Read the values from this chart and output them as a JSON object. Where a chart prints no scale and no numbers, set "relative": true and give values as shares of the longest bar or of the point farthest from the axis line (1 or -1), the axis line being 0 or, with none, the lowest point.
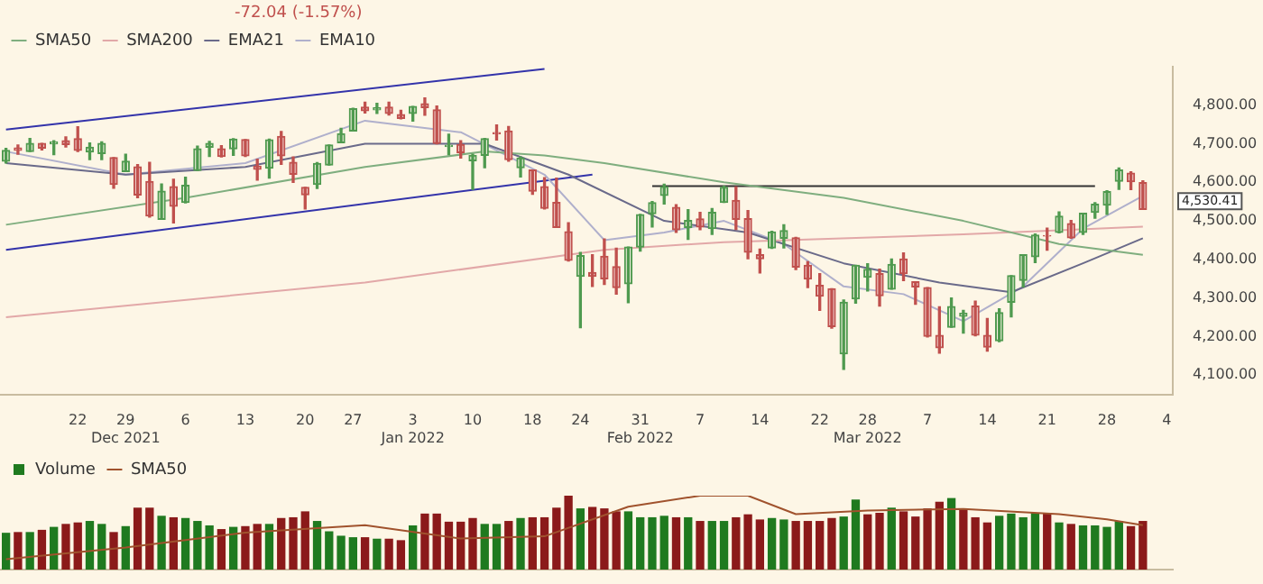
{
  "chart_data": [
    {
      "type": "candlestick",
      "legend": "top left",
      "annotations": [
        "-72.04 (-1.57%)",
        "4,530.41"
      ],
      "categories": [
        null,
        null,
        null,
        null,
        null,
        null,
        "22",
        null,
        null,
        null,
        "29 Dec 2021",
        null,
        null,
        null,
        null,
        "6",
        null,
        null,
        null,
        null,
        "13",
        null,
        null,
        null,
        null,
        "20",
        null,
        null,
        null,
        "27",
        null,
        null,
        null,
        null,
        "3 Jan 2022",
        null,
        null,
        null,
        null,
        "10",
        null,
        null,
        null,
        null,
        "18",
        null,
        null,
        null,
        "24",
        null,
        null,
        null,
        null,
        "31 Feb 2022",
        null,
        null,
        null,
        null,
        "7",
        null,
        null,
        null,
        null,
        "14",
        null,
        null,
        null,
        null,
        "22",
        null,
        null,
        null,
        "28 Mar 2022",
        null,
        null,
        null,
        null,
        "7",
        null,
        null,
        null,
        null,
        "14",
        null,
        null,
        null,
        null,
        "21",
        null,
        null,
        null,
        null,
        "28",
        null,
        null,
        null,
        null,
        "4"
      ],
      "ohlc": [
        [
          4655,
          4688,
          4650,
          4683
        ],
        [
          4689,
          4697,
          4673,
          4683
        ],
        [
          4680,
          4714,
          4680,
          4701
        ],
        [
          4701,
          4701,
          4684,
          4689
        ],
        [
          4700,
          4708,
          4672,
          4705
        ],
        [
          4708,
          4718,
          4692,
          4698
        ],
        [
          4713,
          4744,
          4680,
          4683
        ],
        [
          4679,
          4702,
          4659,
          4691
        ],
        [
          4675,
          4705,
          4659,
          4701
        ],
        [
          4664,
          4664,
          4585,
          4595
        ],
        [
          4628,
          4673,
          4628,
          4655
        ],
        [
          4640,
          4646,
          4560,
          4567
        ],
        [
          4602,
          4652,
          4510,
          4513
        ],
        [
          4504,
          4596,
          4504,
          4577
        ],
        [
          4589,
          4608,
          4495,
          4538
        ],
        [
          4548,
          4613,
          4547,
          4592
        ],
        [
          4631,
          4694,
          4631,
          4687
        ],
        [
          4691,
          4706,
          4667,
          4701
        ],
        [
          4687,
          4695,
          4666,
          4667
        ],
        [
          4687,
          4713,
          4670,
          4712
        ],
        [
          4711,
          4711,
          4667,
          4669
        ],
        [
          4642,
          4660,
          4606,
          4634
        ],
        [
          4637,
          4712,
          4611,
          4710
        ],
        [
          4719,
          4732,
          4647,
          4669
        ],
        [
          4652,
          4666,
          4600,
          4621
        ],
        [
          4587,
          4587,
          4531,
          4568
        ],
        [
          4595,
          4651,
          4584,
          4649
        ],
        [
          4645,
          4697,
          4645,
          4697
        ],
        [
          4703,
          4740,
          4703,
          4726
        ],
        [
          4733,
          4792,
          4733,
          4791
        ],
        [
          4795,
          4808,
          4780,
          4786
        ],
        [
          4788,
          4805,
          4779,
          4793
        ],
        [
          4795,
          4808,
          4775,
          4779
        ],
        [
          4776,
          4787,
          4765,
          4766
        ],
        [
          4779,
          4797,
          4759,
          4797
        ],
        [
          4804,
          4819,
          4774,
          4794
        ],
        [
          4788,
          4798,
          4700,
          4701
        ],
        [
          4693,
          4725,
          4672,
          4696
        ],
        [
          4698,
          4708,
          4663,
          4677
        ],
        [
          4656,
          4673,
          4582,
          4670
        ],
        [
          4670,
          4714,
          4638,
          4713
        ],
        [
          4729,
          4749,
          4710,
          4726
        ],
        [
          4733,
          4745,
          4655,
          4659
        ],
        [
          4638,
          4666,
          4614,
          4663
        ],
        [
          4632,
          4632,
          4569,
          4577
        ],
        [
          4589,
          4612,
          4531,
          4533
        ],
        [
          4548,
          4611,
          4483,
          4483
        ],
        [
          4472,
          4495,
          4396,
          4398
        ],
        [
          4356,
          4418,
          4223,
          4410
        ],
        [
          4366,
          4412,
          4330,
          4356
        ],
        [
          4408,
          4453,
          4335,
          4350
        ],
        [
          4381,
          4429,
          4310,
          4327
        ],
        [
          4337,
          4432,
          4288,
          4432
        ],
        [
          4432,
          4517,
          4422,
          4516
        ],
        [
          4519,
          4550,
          4484,
          4547
        ],
        [
          4566,
          4595,
          4544,
          4589
        ],
        [
          4535,
          4542,
          4470,
          4477
        ],
        [
          4483,
          4529,
          4452,
          4501
        ],
        [
          4505,
          4522,
          4477,
          4484
        ],
        [
          4480,
          4532,
          4465,
          4522
        ],
        [
          4548,
          4590,
          4548,
          4587
        ],
        [
          4553,
          4588,
          4478,
          4504
        ],
        [
          4506,
          4527,
          4402,
          4419
        ],
        [
          4412,
          4427,
          4365,
          4402
        ],
        [
          4430,
          4473,
          4429,
          4471
        ],
        [
          4455,
          4490,
          4430,
          4475
        ],
        [
          4456,
          4457,
          4374,
          4380
        ],
        [
          4385,
          4394,
          4327,
          4349
        ],
        [
          4333,
          4363,
          4268,
          4305
        ],
        [
          4324,
          4324,
          4222,
          4226
        ],
        [
          4155,
          4295,
          4115,
          4289
        ],
        [
          4298,
          4385,
          4287,
          4385
        ],
        [
          4354,
          4389,
          4318,
          4374
        ],
        [
          4363,
          4375,
          4279,
          4306
        ],
        [
          4323,
          4401,
          4323,
          4387
        ],
        [
          4401,
          4417,
          4345,
          4363
        ],
        [
          4342,
          4342,
          4284,
          4329
        ],
        [
          4327,
          4327,
          4199,
          4201
        ],
        [
          4203,
          4277,
          4157,
          4171
        ],
        [
          4224,
          4300,
          4224,
          4278
        ],
        [
          4253,
          4268,
          4209,
          4260
        ],
        [
          4279,
          4292,
          4202,
          4204
        ],
        [
          4203,
          4247,
          4162,
          4173
        ],
        [
          4189,
          4272,
          4187,
          4262
        ],
        [
          4289,
          4358,
          4251,
          4358
        ],
        [
          4346,
          4412,
          4329,
          4412
        ],
        [
          4407,
          4466,
          4392,
          4463
        ],
        [
          4462,
          4481,
          4424,
          4461
        ],
        [
          4470,
          4523,
          4469,
          4512
        ],
        [
          4493,
          4501,
          4455,
          4456
        ],
        [
          4470,
          4520,
          4465,
          4520
        ],
        [
          4522,
          4547,
          4507,
          4543
        ],
        [
          4541,
          4578,
          4517,
          4576
        ],
        [
          4603,
          4637,
          4582,
          4632
        ],
        [
          4624,
          4627,
          4581,
          4602
        ],
        [
          4599,
          4604,
          4530,
          4530
        ],
        null,
        null
      ],
      "series": [
        {
          "type": "line",
          "name": "SMA50",
          "color": "#7fae7f",
          "values": [
            4490,
            null,
            null,
            null,
            null,
            null,
            null,
            null,
            null,
            null,
            null,
            null,
            null,
            null,
            null,
            4560,
            null,
            null,
            null,
            null,
            null,
            null,
            null,
            null,
            null,
            null,
            null,
            null,
            null,
            null,
            4640,
            null,
            null,
            null,
            null,
            null,
            null,
            null,
            null,
            null,
            4680,
            null,
            null,
            null,
            null,
            4670,
            null,
            null,
            null,
            null,
            4650,
            null,
            null,
            null,
            null,
            null,
            null,
            null,
            null,
            null,
            4600,
            null,
            null,
            null,
            null,
            null,
            null,
            null,
            null,
            null,
            4560,
            null,
            null,
            null,
            null,
            null,
            null,
            null,
            null,
            null,
            4500,
            null,
            null,
            null,
            null,
            null,
            null,
            null,
            4440,
            null,
            null,
            null,
            null,
            null,
            null,
            4412,
            null,
            null
          ]
        },
        {
          "type": "line",
          "name": "SMA200",
          "color": "#e2a8a8",
          "values": [
            4250,
            null,
            null,
            null,
            null,
            null,
            null,
            null,
            null,
            null,
            null,
            null,
            null,
            null,
            null,
            null,
            null,
            null,
            null,
            null,
            null,
            null,
            null,
            null,
            null,
            null,
            null,
            null,
            null,
            null,
            4340,
            null,
            null,
            null,
            null,
            null,
            null,
            null,
            null,
            null,
            null,
            null,
            null,
            null,
            null,
            null,
            null,
            null,
            null,
            null,
            4425,
            null,
            null,
            null,
            null,
            null,
            null,
            null,
            null,
            null,
            4445,
            null,
            null,
            null,
            null,
            null,
            null,
            null,
            null,
            null,
            null,
            null,
            null,
            null,
            null,
            null,
            null,
            null,
            null,
            null,
            4465,
            null,
            null,
            null,
            null,
            null,
            null,
            null,
            null,
            null,
            null,
            null,
            null,
            null,
            null,
            4485,
            null,
            null
          ]
        },
        {
          "type": "line",
          "name": "EMA21",
          "color": "#6a6a8a",
          "values": [
            4650,
            null,
            null,
            null,
            null,
            null,
            null,
            null,
            null,
            null,
            4620,
            null,
            null,
            null,
            null,
            null,
            null,
            null,
            null,
            null,
            4640,
            null,
            null,
            null,
            null,
            null,
            null,
            null,
            null,
            null,
            4700,
            null,
            null,
            null,
            null,
            null,
            null,
            null,
            null,
            null,
            4700,
            null,
            null,
            null,
            null,
            null,
            null,
            4620,
            null,
            null,
            null,
            null,
            null,
            null,
            null,
            4500,
            null,
            null,
            null,
            null,
            null,
            null,
            4470,
            null,
            null,
            null,
            null,
            null,
            null,
            null,
            4390,
            null,
            null,
            null,
            null,
            null,
            null,
            null,
            4340,
            null,
            null,
            null,
            null,
            null,
            4315,
            null,
            null,
            null,
            null,
            null,
            4390,
            null,
            null,
            null,
            null,
            4455,
            null,
            null
          ]
        },
        {
          "type": "line",
          "name": "EMA10",
          "color": "#b0b0cc",
          "values": [
            4680,
            null,
            null,
            null,
            null,
            null,
            null,
            null,
            null,
            null,
            4620,
            null,
            null,
            null,
            null,
            null,
            null,
            null,
            null,
            null,
            4650,
            null,
            null,
            null,
            null,
            null,
            null,
            null,
            null,
            null,
            4760,
            null,
            null,
            null,
            null,
            null,
            null,
            null,
            4730,
            null,
            null,
            null,
            null,
            null,
            null,
            4620,
            null,
            null,
            null,
            null,
            4450,
            null,
            null,
            null,
            null,
            4470,
            null,
            null,
            null,
            null,
            4500,
            null,
            null,
            null,
            null,
            4440,
            null,
            null,
            null,
            null,
            4330,
            null,
            null,
            null,
            null,
            4310,
            null,
            null,
            null,
            null,
            4240,
            null,
            null,
            null,
            null,
            4330,
            null,
            null,
            null,
            null,
            4480,
            null,
            null,
            null,
            null,
            4565,
            null,
            null
          ]
        },
        {
          "type": "line",
          "color": "#3333aa",
          "values": [
            4737,
            null,
            null,
            null,
            null,
            null,
            null,
            null,
            null,
            null,
            null,
            null,
            null,
            null,
            null,
            null,
            null,
            null,
            null,
            null,
            null,
            null,
            null,
            null,
            null,
            null,
            null,
            null,
            null,
            null,
            null,
            null,
            null,
            null,
            null,
            null,
            null,
            null,
            null,
            null,
            null,
            null,
            null,
            null,
            null,
            4894,
            null,
            null,
            null,
            null,
            null,
            null,
            null,
            null,
            null,
            null,
            null,
            null,
            null,
            null,
            null,
            null,
            null,
            null,
            null,
            null,
            null,
            null,
            null,
            null,
            null,
            null,
            null,
            null,
            null,
            null,
            null,
            null,
            null,
            null,
            null,
            null,
            null,
            null,
            null,
            null,
            null,
            null,
            null,
            null,
            null,
            null,
            null,
            null,
            null,
            null,
            null,
            null
          ]
        },
        {
          "type": "line",
          "color": "#3333aa",
          "values": [
            4425,
            null,
            null,
            null,
            null,
            null,
            null,
            null,
            null,
            null,
            null,
            null,
            null,
            null,
            null,
            null,
            null,
            null,
            null,
            null,
            null,
            null,
            null,
            null,
            null,
            null,
            null,
            null,
            null,
            null,
            null,
            null,
            null,
            null,
            null,
            null,
            null,
            null,
            null,
            null,
            null,
            null,
            null,
            null,
            null,
            null,
            null,
            null,
            null,
            4620,
            null,
            null,
            null,
            null,
            null,
            null,
            null,
            null,
            null,
            null,
            null,
            null,
            null,
            null,
            null,
            null,
            null,
            null,
            null,
            null,
            null,
            null,
            null,
            null,
            null,
            null,
            null,
            null,
            null,
            null,
            null,
            null,
            null,
            null,
            null,
            null,
            null,
            null,
            null,
            null,
            null,
            null,
            null,
            null,
            null,
            null,
            null,
            null
          ]
        },
        {
          "type": "line",
          "color": "#333333",
          "values": [
            null,
            null,
            null,
            null,
            null,
            null,
            null,
            null,
            null,
            null,
            null,
            null,
            null,
            null,
            null,
            null,
            null,
            null,
            null,
            null,
            null,
            null,
            null,
            null,
            null,
            null,
            null,
            null,
            null,
            null,
            null,
            null,
            null,
            null,
            null,
            null,
            null,
            null,
            null,
            null,
            null,
            null,
            null,
            null,
            null,
            null,
            null,
            null,
            null,
            null,
            null,
            null,
            null,
            null,
            4590,
            null,
            null,
            null,
            null,
            null,
            null,
            null,
            null,
            null,
            null,
            null,
            null,
            null,
            null,
            null,
            null,
            null,
            null,
            null,
            null,
            null,
            null,
            null,
            null,
            null,
            null,
            null,
            null,
            null,
            null,
            null,
            null,
            null,
            null,
            null,
            null,
            4590,
            null,
            null,
            null,
            null,
            null,
            null
          ]
        }
      ],
      "ylim": [
        4050,
        4900
      ],
      "yticks": [
        {
          "value": 4100,
          "label": "4,100.00"
        },
        {
          "value": 4200,
          "label": "4,200.00"
        },
        {
          "value": 4300,
          "label": "4,300.00"
        },
        {
          "value": 4400,
          "label": "4,400.00"
        },
        {
          "value": 4500,
          "label": "4,500.00"
        },
        {
          "value": 4600,
          "label": "4,600.00"
        },
        {
          "value": 4700,
          "label": "4,700.00"
        },
        {
          "value": 4800,
          "label": "4,800.00"
        }
      ],
      "grid": false
    },
    {
      "type": "bar",
      "relative": true,
      "legend": "top left",
      "grid": false,
      "categories": [
        null,
        null,
        null,
        null,
        null,
        null,
        null,
        null,
        null,
        null,
        null,
        null,
        null,
        null,
        null,
        null,
        null,
        null,
        null,
        null,
        null,
        null,
        null,
        null,
        null,
        null,
        null,
        null,
        null,
        null,
        null,
        null,
        null,
        null,
        null,
        null,
        null,
        null,
        null,
        null,
        null,
        null,
        null,
        null,
        null,
        null,
        null,
        null,
        null,
        null,
        null,
        null,
        null,
        null,
        null,
        null,
        null,
        null,
        null,
        null,
        null,
        null,
        null,
        null,
        null,
        null,
        null,
        null,
        null,
        null,
        null,
        null,
        null,
        null,
        null,
        null,
        null,
        null,
        null,
        null,
        null,
        null,
        null,
        null,
        null,
        null,
        null,
        null,
        null,
        null,
        null,
        null,
        null,
        null,
        null,
        null,
        null,
        null
      ],
      "series": [
        {
          "type": "bar",
          "name": "Volume",
          "values": [
            0.49,
            0.5,
            0.5,
            0.53,
            0.57,
            0.61,
            0.63,
            0.65,
            0.61,
            0.5,
            0.58,
            0.83,
            0.83,
            0.72,
            0.7,
            0.69,
            0.65,
            0.59,
            0.54,
            0.57,
            0.58,
            0.61,
            0.61,
            0.69,
            0.7,
            0.78,
            0.65,
            0.51,
            0.45,
            0.43,
            0.43,
            0.41,
            0.41,
            0.39,
            0.59,
            0.75,
            0.75,
            0.64,
            0.64,
            0.69,
            0.61,
            0.61,
            0.65,
            0.69,
            0.7,
            0.7,
            0.83,
            1,
            0.82,
            0.84,
            0.82,
            0.78,
            0.78,
            0.7,
            0.7,
            0.72,
            0.7,
            0.7,
            0.65,
            0.65,
            0.65,
            0.7,
            0.74,
            0.67,
            0.69,
            0.67,
            0.65,
            0.65,
            0.65,
            0.69,
            0.71,
            0.94,
            0.74,
            0.76,
            0.83,
            0.78,
            0.71,
            0.82,
            0.91,
            0.96,
            0.8,
            0.7,
            0.63,
            0.72,
            0.75,
            0.7,
            0.76,
            0.75,
            0.63,
            0.61,
            0.59,
            0.59,
            0.57,
            0.65,
            0.58,
            0.65,
            null,
            null
          ],
          "colors": [
            "#1f7a1f",
            "#8b1a1a",
            "#1f7a1f",
            "#8b1a1a",
            "#1f7a1f",
            "#8b1a1a",
            "#8b1a1a",
            "#1f7a1f",
            "#1f7a1f",
            "#8b1a1a",
            "#1f7a1f",
            "#8b1a1a",
            "#8b1a1a",
            "#1f7a1f",
            "#8b1a1a",
            "#1f7a1f",
            "#1f7a1f",
            "#1f7a1f",
            "#8b1a1a",
            "#1f7a1f",
            "#8b1a1a",
            "#8b1a1a",
            "#1f7a1f",
            "#8b1a1a",
            "#8b1a1a",
            "#8b1a1a",
            "#1f7a1f",
            "#1f7a1f",
            "#1f7a1f",
            "#1f7a1f",
            "#8b1a1a",
            "#1f7a1f",
            "#8b1a1a",
            "#8b1a1a",
            "#1f7a1f",
            "#8b1a1a",
            "#8b1a1a",
            "#8b1a1a",
            "#8b1a1a",
            "#8b1a1a",
            "#1f7a1f",
            "#1f7a1f",
            "#8b1a1a",
            "#1f7a1f",
            "#8b1a1a",
            "#8b1a1a",
            "#8b1a1a",
            "#8b1a1a",
            "#1f7a1f",
            "#8b1a1a",
            "#8b1a1a",
            "#8b1a1a",
            "#1f7a1f",
            "#1f7a1f",
            "#1f7a1f",
            "#1f7a1f",
            "#8b1a1a",
            "#1f7a1f",
            "#8b1a1a",
            "#1f7a1f",
            "#1f7a1f",
            "#8b1a1a",
            "#8b1a1a",
            "#8b1a1a",
            "#1f7a1f",
            "#1f7a1f",
            "#8b1a1a",
            "#8b1a1a",
            "#8b1a1a",
            "#8b1a1a",
            "#1f7a1f",
            "#1f7a1f",
            "#8b1a1a",
            "#8b1a1a",
            "#1f7a1f",
            "#8b1a1a",
            "#8b1a1a",
            "#8b1a1a",
            "#8b1a1a",
            "#1f7a1f",
            "#8b1a1a",
            "#8b1a1a",
            "#8b1a1a",
            "#1f7a1f",
            "#1f7a1f",
            "#1f7a1f",
            "#1f7a1f",
            "#8b1a1a",
            "#1f7a1f",
            "#8b1a1a",
            "#1f7a1f",
            "#1f7a1f",
            "#1f7a1f",
            "#1f7a1f",
            "#8b1a1a",
            "#8b1a1a",
            "#8b1a1a",
            "#8b1a1a"
          ]
        },
        {
          "type": "line",
          "name": "SMA50",
          "color": "#a0522d",
          "values": [
            0.14,
            null,
            null,
            null,
            null,
            null,
            null,
            null,
            null,
            null,
            0.3,
            null,
            null,
            null,
            null,
            null,
            null,
            null,
            null,
            null,
            0.5,
            null,
            null,
            null,
            null,
            null,
            null,
            null,
            null,
            null,
            0.6,
            null,
            null,
            null,
            null,
            null,
            null,
            null,
            0.42,
            null,
            null,
            null,
            null,
            null,
            null,
            0.45,
            null,
            null,
            null,
            null,
            null,
            null,
            0.85,
            null,
            null,
            null,
            null,
            null,
            1,
            null,
            null,
            null,
            1,
            null,
            null,
            null,
            0.75,
            null,
            null,
            null,
            null,
            null,
            0.8,
            null,
            null,
            null,
            null,
            null,
            null,
            null,
            0.82,
            null,
            null,
            null,
            null,
            null,
            null,
            null,
            0.75,
            null,
            null,
            null,
            0.68,
            null,
            null,
            0.6,
            null,
            null
          ]
        }
      ]
    }
  ]
}
